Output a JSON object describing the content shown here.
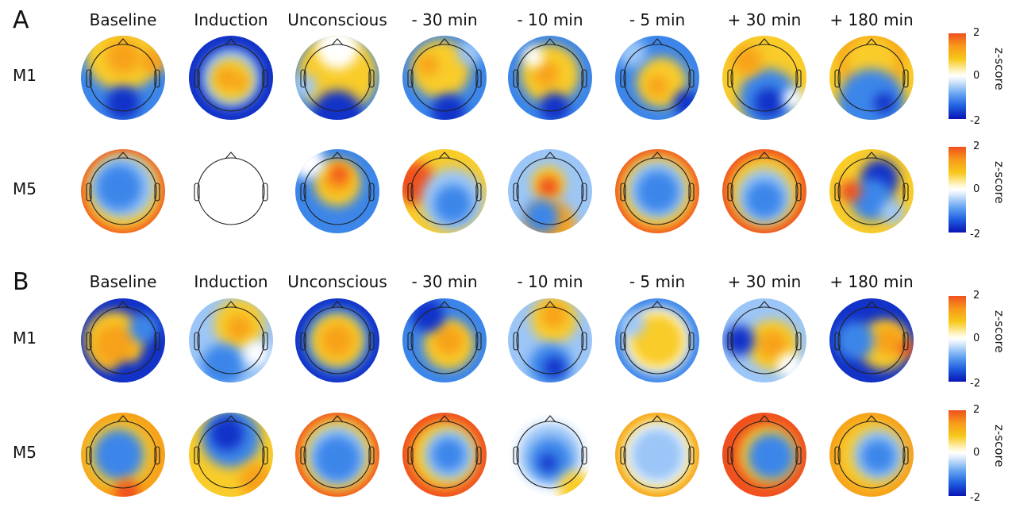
{
  "panels": [
    {
      "letter": "A",
      "rows": [
        "M1",
        "M5"
      ]
    },
    {
      "letter": "B",
      "rows": [
        "M1",
        "M5"
      ]
    }
  ],
  "columns": [
    "Baseline",
    "Induction",
    "Unconscious",
    "- 30 min",
    "- 10 min",
    "- 5 min",
    "+ 30 min",
    "+ 180 min"
  ],
  "colorbar": {
    "max": "2",
    "mid": "0",
    "min": "-2",
    "label": "z-score",
    "colors": {
      "high": "#f0501e",
      "mid_high": "#f7c81a",
      "zero": "#ffffff",
      "mid_low": "#6aa8f2",
      "low": "#0a14b4"
    }
  },
  "notes": {
    "empty_map": "Panel A, M5, Induction shows an empty head outline (no data)"
  }
}
